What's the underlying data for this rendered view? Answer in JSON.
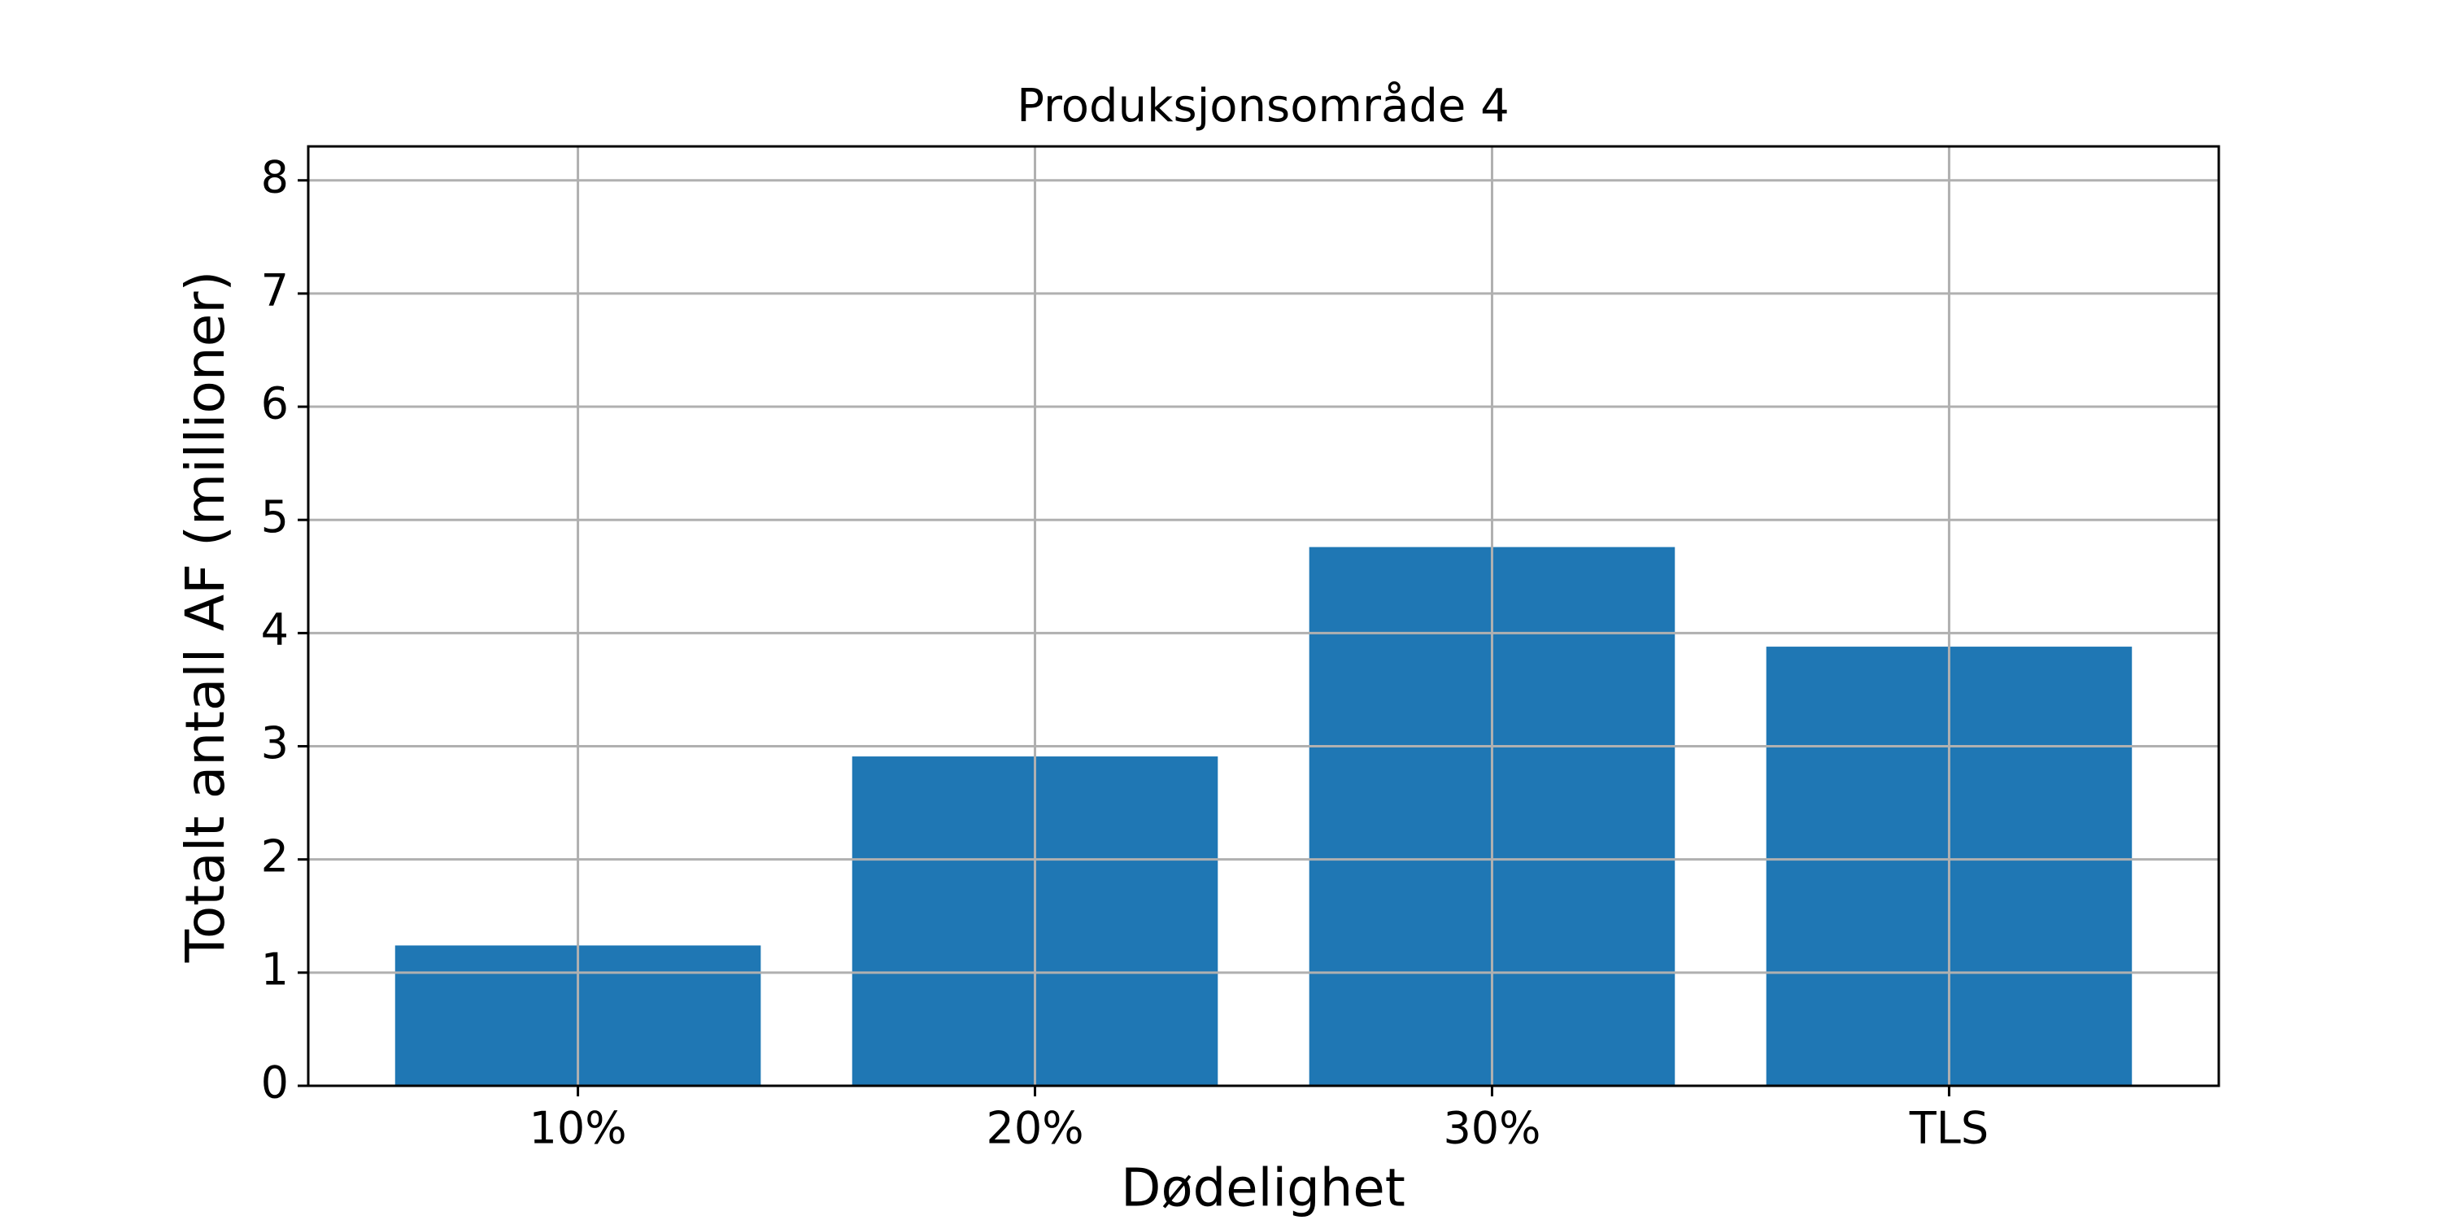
{
  "chart_data": {
    "type": "bar",
    "title": "Produksjonsområde 4",
    "x_label": "Dødelighet",
    "y_label": "Totalt antall AF (millioner)",
    "categories": [
      "10%",
      "20%",
      "30%",
      "TLS"
    ],
    "values": [
      1.24,
      2.91,
      4.76,
      3.88
    ],
    "color": "#1f77b4",
    "ylim": [
      0,
      8.3
    ],
    "yticks": [
      0,
      1,
      2,
      3,
      4,
      5,
      6,
      7,
      8
    ],
    "grid": true
  }
}
